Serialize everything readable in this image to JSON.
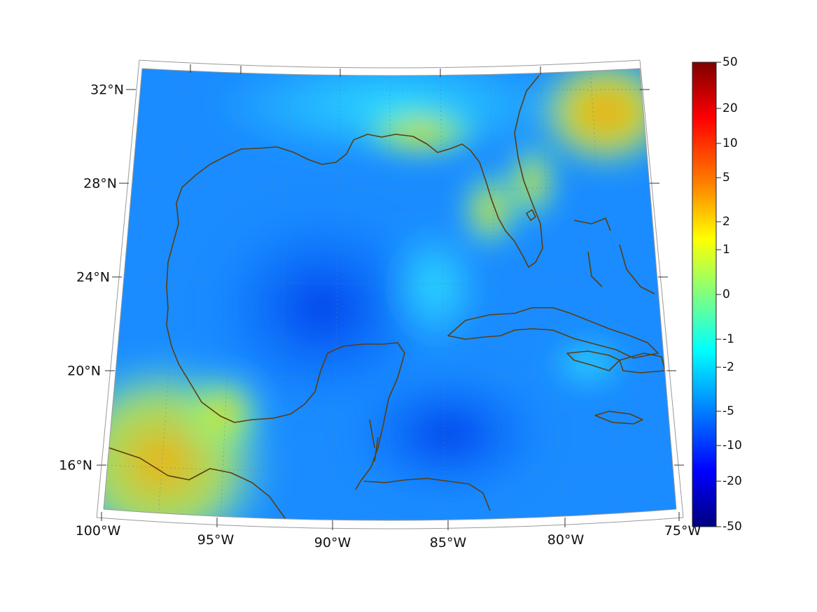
{
  "map": {
    "region": "Gulf of Mexico and Caribbean",
    "lon_range": [
      -100,
      -75
    ],
    "lat_range": [
      14,
      33
    ],
    "lon_ticks": [
      "100°W",
      "95°W",
      "90°W",
      "85°W",
      "80°W",
      "75°W"
    ],
    "lat_ticks": [
      "32°N",
      "28°N",
      "24°N",
      "20°N",
      "16°N"
    ],
    "coastline_color": "#5c3d0e",
    "gridline_style": "dotted"
  },
  "colorbar": {
    "ticks": [
      "50",
      "20",
      "10",
      "5",
      "2",
      "1",
      "0",
      "-1",
      "-2",
      "-5",
      "-10",
      "-20",
      "-50"
    ],
    "colormap": "jet",
    "colors": [
      "#00007f",
      "#0000ff",
      "#007fff",
      "#00ffff",
      "#7fff7f",
      "#ffff00",
      "#ff7f00",
      "#ff0000",
      "#7f0000"
    ]
  }
}
